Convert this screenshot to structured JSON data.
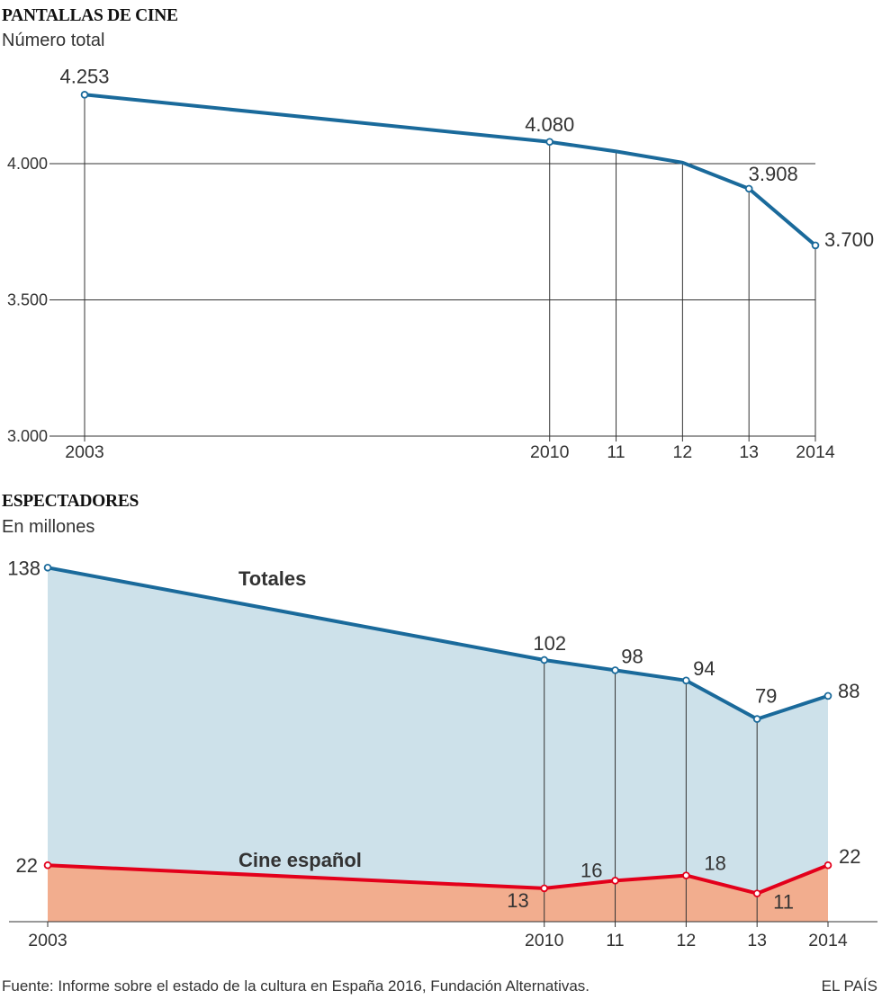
{
  "chart_data": [
    {
      "type": "line",
      "title": "PANTALLAS DE CINE",
      "subtitle": "Número total",
      "x": [
        2003,
        2010,
        2011,
        2012,
        2013,
        2014
      ],
      "x_tick_labels": [
        "2003",
        "2010",
        "11",
        "12",
        "13",
        "2014"
      ],
      "y_ticks": [
        3000,
        3500,
        4000
      ],
      "y_tick_labels": [
        "3.000",
        "3.500",
        "4.000"
      ],
      "ylim": [
        3000,
        4500
      ],
      "grid": true,
      "series": [
        {
          "values": [
            4253,
            4080,
            4045,
            4004,
            3908,
            3700
          ],
          "data_labels": [
            "4.253",
            "4.080",
            null,
            null,
            "3.908",
            "3.700"
          ],
          "color": "#1a6a9b"
        }
      ]
    },
    {
      "type": "area",
      "title": "ESPECTADORES",
      "subtitle": "En millones",
      "x": [
        2003,
        2010,
        2011,
        2012,
        2013,
        2014
      ],
      "x_tick_labels": [
        "2003",
        "2010",
        "11",
        "12",
        "13",
        "2014"
      ],
      "ylim": [
        0,
        145
      ],
      "grid": false,
      "series": [
        {
          "name": "Totales",
          "values": [
            138,
            102,
            98,
            94,
            79,
            88
          ],
          "data_labels": [
            "138",
            "102",
            "98",
            "94",
            "79",
            "88"
          ],
          "color": "#1a6a9b",
          "fill": "#cde1ea"
        },
        {
          "name": "Cine español",
          "values": [
            22,
            13,
            16,
            18,
            11,
            22
          ],
          "data_labels": [
            "22",
            "13",
            "16",
            "18",
            "11",
            "22"
          ],
          "color": "#e3001b",
          "fill": "#f2ad8e"
        }
      ]
    }
  ],
  "footer": {
    "source": "Fuente: Informe sobre el estado de la cultura en España 2016, Fundación Alternativas.",
    "brand": "EL PAÍS"
  }
}
